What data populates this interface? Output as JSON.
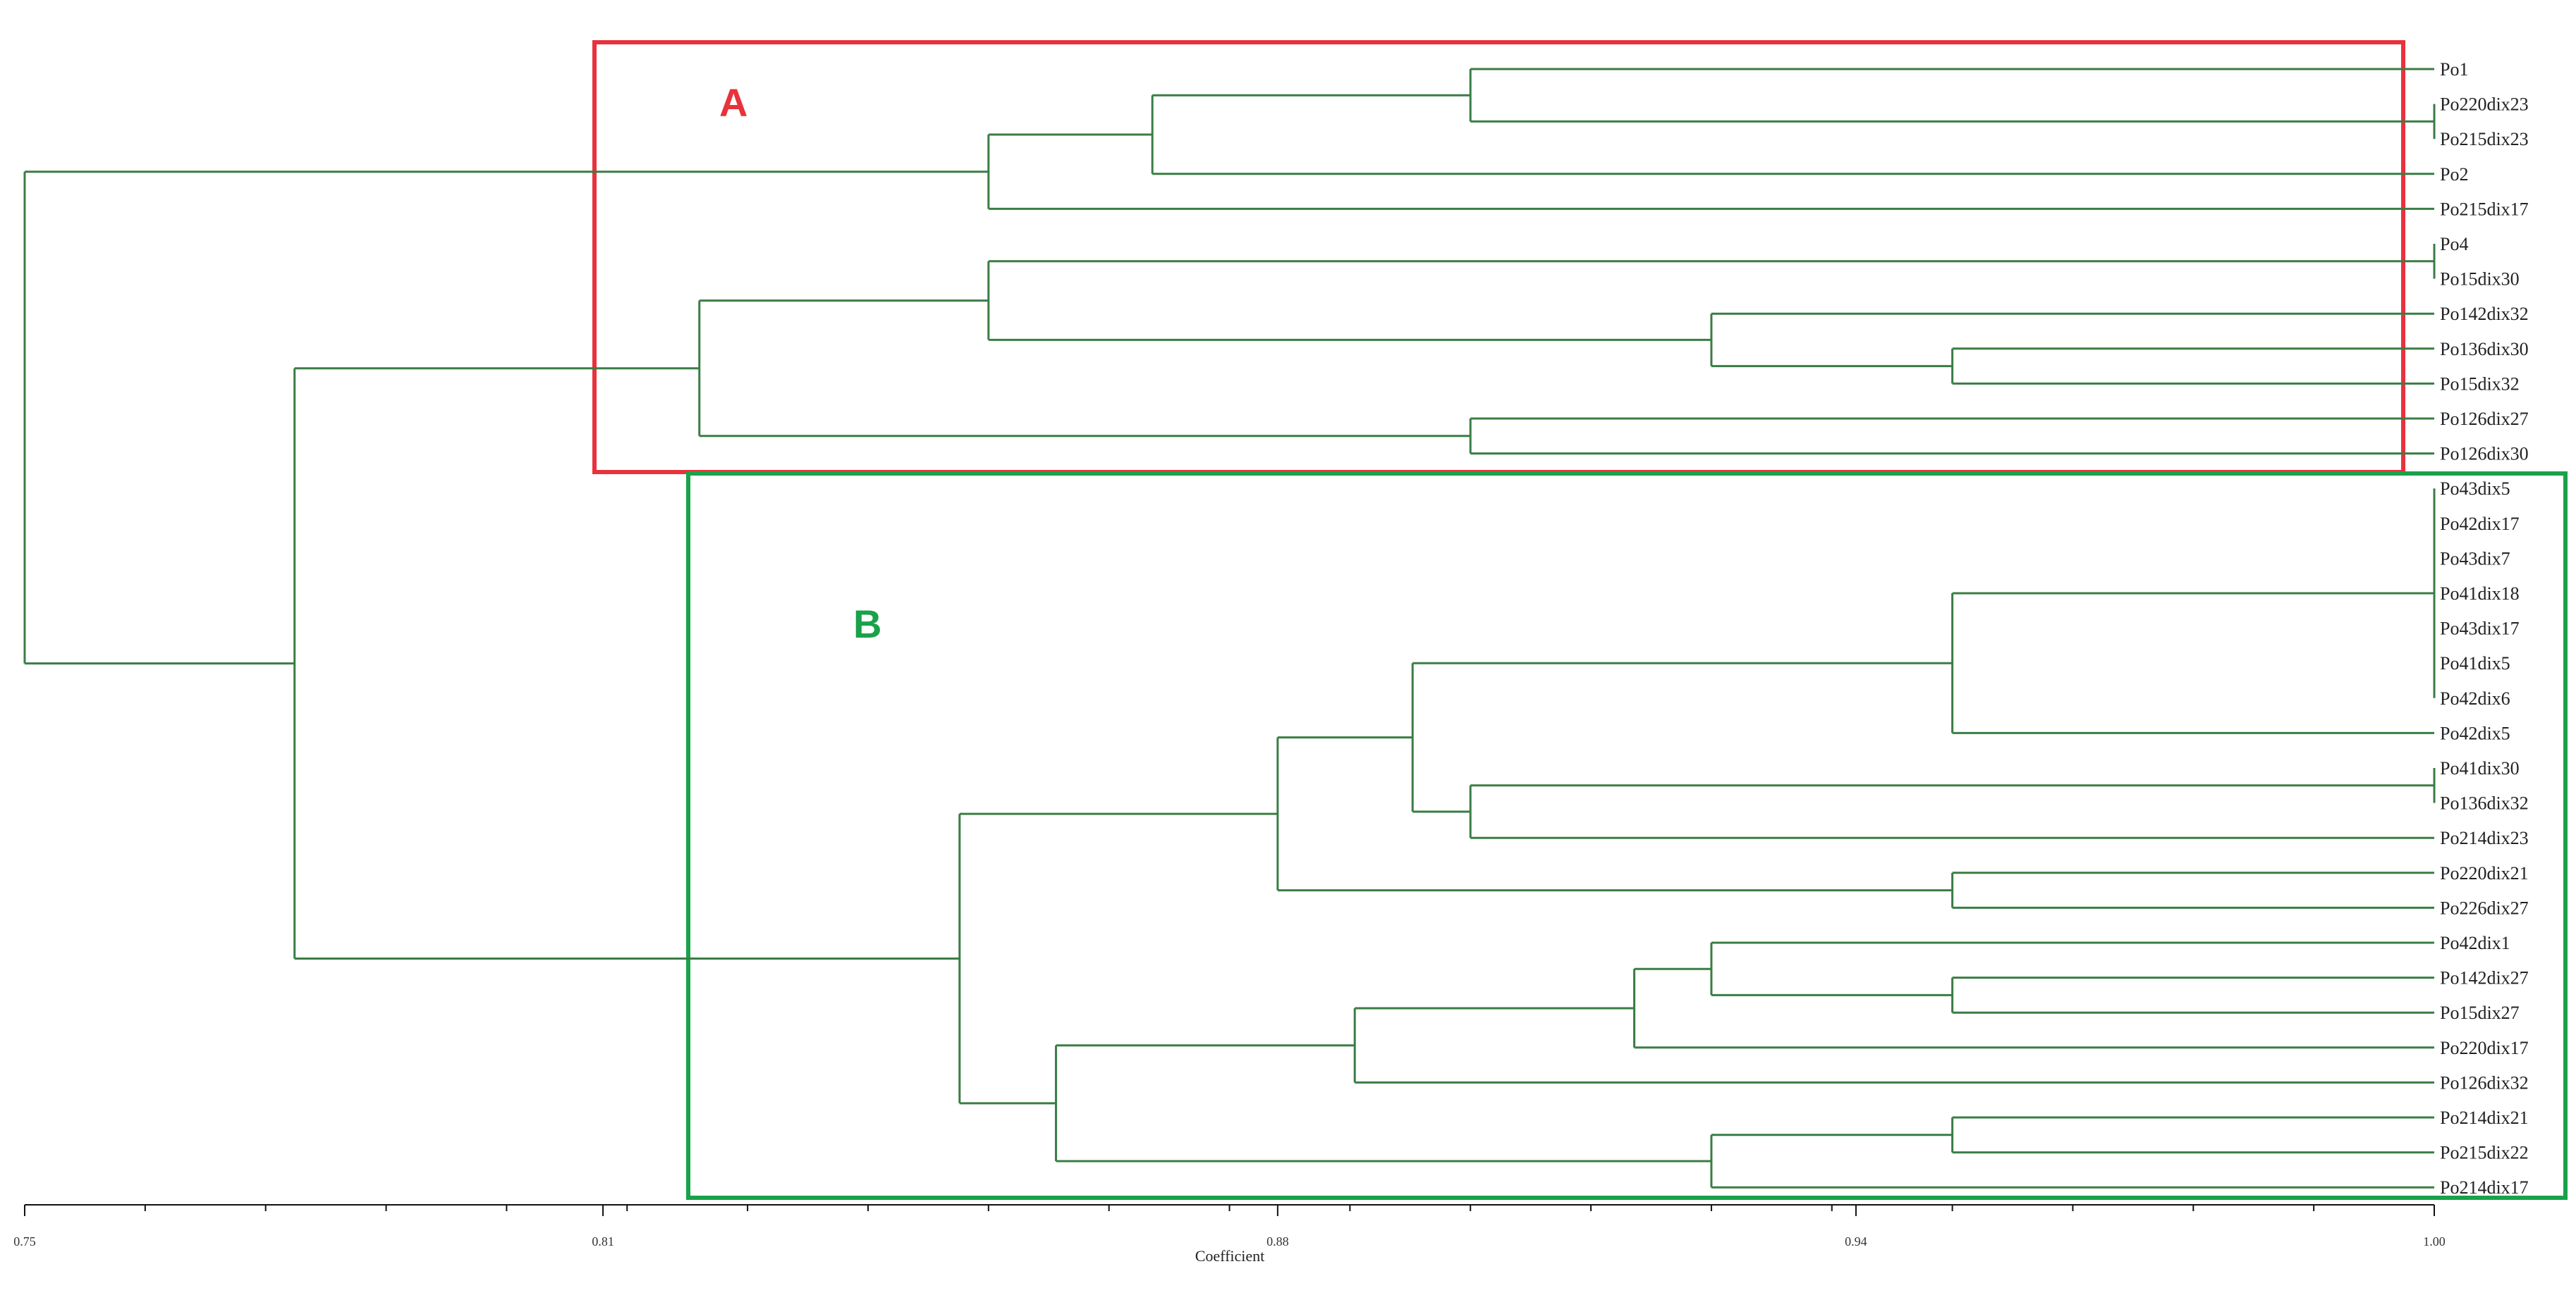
{
  "chart_data": {
    "type": "dendrogram",
    "xlabel": "Coefficient",
    "xlim": [
      0.75,
      1.0
    ],
    "ticks": [
      {
        "value": 0.75,
        "label": "0.75"
      },
      {
        "value": 0.81,
        "label": "0.81"
      },
      {
        "value": 0.88,
        "label": "0.88"
      },
      {
        "value": 0.94,
        "label": "0.94"
      },
      {
        "value": 1.0,
        "label": "1.00"
      }
    ],
    "leaves": [
      "Po1",
      "Po220dix23",
      "Po215dix23",
      "Po2",
      "Po215dix17",
      "Po4",
      "Po15dix30",
      "Po142dix32",
      "Po136dix30",
      "Po15dix32",
      "Po126dix27",
      "Po126dix30",
      "Po43dix5",
      "Po42dix17",
      "Po43dix7",
      "Po41dix18",
      "Po43dix17",
      "Po41dix5",
      "Po42dix6",
      "Po42dix5",
      "Po41dix30",
      "Po136dix32",
      "Po214dix23",
      "Po220dix21",
      "Po226dix27",
      "Po42dix1",
      "Po142dix27",
      "Po15dix27",
      "Po220dix17",
      "Po126dix32",
      "Po214dix21",
      "Po215dix22",
      "Po214dix17"
    ],
    "merges": [
      {
        "id": "m1",
        "children": [
          "Po220dix23",
          "Po215dix23"
        ],
        "height": 1.0
      },
      {
        "id": "m2",
        "children": [
          "Po1",
          "m1"
        ],
        "height": 0.9
      },
      {
        "id": "m3",
        "children": [
          "m2",
          "Po2"
        ],
        "height": 0.867
      },
      {
        "id": "m4",
        "children": [
          "m3",
          "Po215dix17"
        ],
        "height": 0.85
      },
      {
        "id": "m5",
        "children": [
          "Po4",
          "Po15dix30"
        ],
        "height": 1.0
      },
      {
        "id": "m6",
        "children": [
          "Po136dix30",
          "Po15dix32"
        ],
        "height": 0.95
      },
      {
        "id": "m7",
        "children": [
          "Po142dix32",
          "m6"
        ],
        "height": 0.925
      },
      {
        "id": "m8",
        "children": [
          "m5",
          "m7"
        ],
        "height": 0.85
      },
      {
        "id": "m9",
        "children": [
          "Po126dix27",
          "Po126dix30"
        ],
        "height": 0.9
      },
      {
        "id": "m10",
        "children": [
          "m8",
          "m9"
        ],
        "height": 0.82
      },
      {
        "id": "m11",
        "children": [
          "Po43dix5",
          "Po42dix17",
          "Po43dix7",
          "Po41dix18",
          "Po43dix17",
          "Po41dix5",
          "Po42dix6"
        ],
        "height": 1.0
      },
      {
        "id": "m12",
        "children": [
          "m11",
          "Po42dix5"
        ],
        "height": 0.95
      },
      {
        "id": "m13",
        "children": [
          "Po41dix30",
          "Po136dix32"
        ],
        "height": 1.0
      },
      {
        "id": "m14",
        "children": [
          "m13",
          "Po214dix23"
        ],
        "height": 0.9
      },
      {
        "id": "m15",
        "children": [
          "m12",
          "m14"
        ],
        "height": 0.894
      },
      {
        "id": "m16",
        "children": [
          "Po220dix21",
          "Po226dix27"
        ],
        "height": 0.95
      },
      {
        "id": "m17",
        "children": [
          "m15",
          "m16"
        ],
        "height": 0.88
      },
      {
        "id": "m18",
        "children": [
          "Po142dix27",
          "Po15dix27"
        ],
        "height": 0.95
      },
      {
        "id": "m19",
        "children": [
          "Po42dix1",
          "m18"
        ],
        "height": 0.925
      },
      {
        "id": "m20",
        "children": [
          "m19",
          "Po220dix17"
        ],
        "height": 0.917
      },
      {
        "id": "m21",
        "children": [
          "m20",
          "Po126dix32"
        ],
        "height": 0.888
      },
      {
        "id": "m22",
        "children": [
          "Po214dix21",
          "Po215dix22"
        ],
        "height": 0.95
      },
      {
        "id": "m23",
        "children": [
          "m22",
          "Po214dix17"
        ],
        "height": 0.925
      },
      {
        "id": "m24",
        "children": [
          "m21",
          "m23"
        ],
        "height": 0.857
      },
      {
        "id": "m25",
        "children": [
          "m17",
          "m24"
        ],
        "height": 0.847
      },
      {
        "id": "m26",
        "children": [
          "m10",
          "m25"
        ],
        "height": 0.778
      },
      {
        "id": "m27",
        "children": [
          "m4",
          "m26"
        ],
        "height": 0.75
      }
    ],
    "clusters": [
      {
        "label": "A",
        "color": "#e8323c",
        "leaves_from": "Po1",
        "leaves_to": "Po126dix30"
      },
      {
        "label": "B",
        "color": "#19a24a",
        "leaves_from": "Po43dix5",
        "leaves_to": "Po214dix17"
      }
    ],
    "branch_color": "#3a7d44"
  }
}
